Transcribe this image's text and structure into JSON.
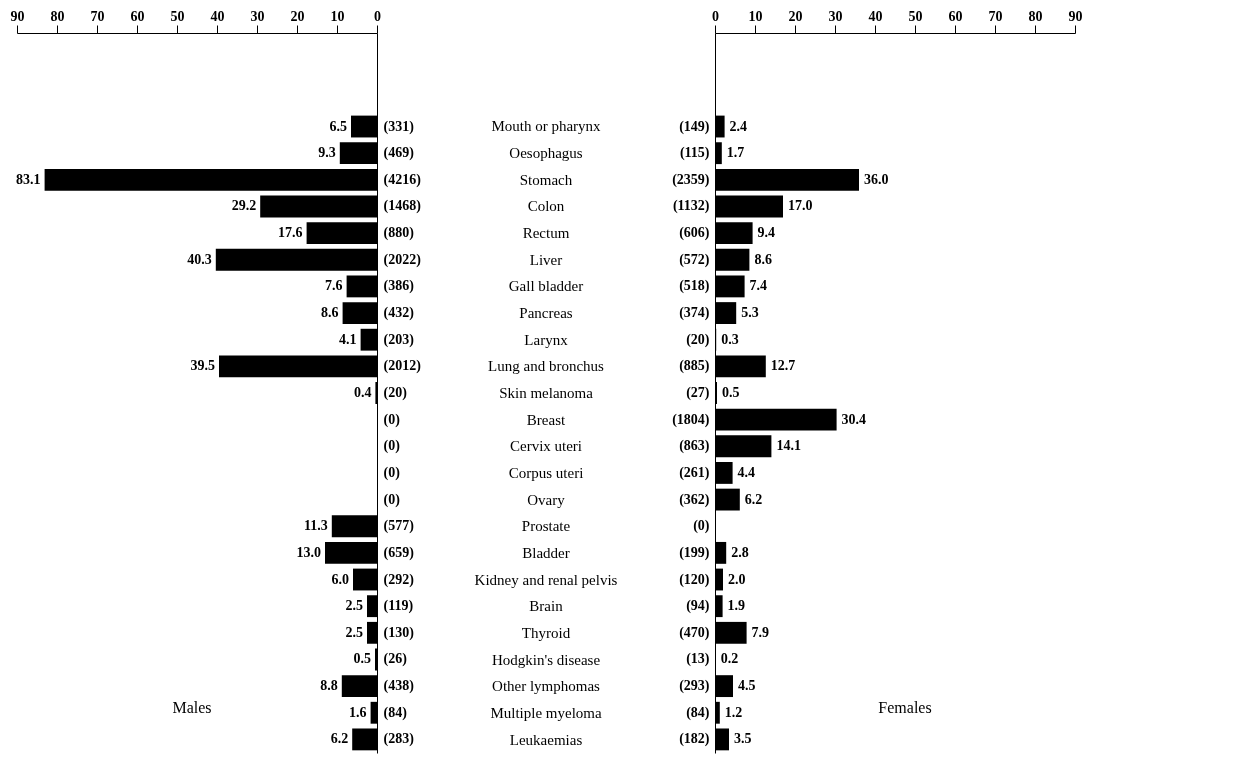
{
  "chart_data": [
    {
      "type": "bar",
      "orientation": "horizontal",
      "categories": [
        "(331)",
        "(469)",
        "(4216)",
        "(1468)",
        "(880)",
        "(2022)",
        "(386)",
        "(432)",
        "(203)",
        "(2012)",
        "(20)",
        "(0)",
        "(0)",
        "(0)",
        "(0)",
        "(577)",
        "(659)",
        "(292)",
        "(119)",
        "(130)",
        "(26)",
        "(438)",
        "(84)",
        "(283)"
      ],
      "values": [
        6.5,
        9.3,
        83.1,
        29.2,
        17.6,
        40.3,
        7.6,
        8.6,
        4.1,
        39.5,
        0.4,
        null,
        null,
        null,
        null,
        11.3,
        13.0,
        6.0,
        2.5,
        2.5,
        0.5,
        8.8,
        1.6,
        6.2
      ],
      "value_labels": [
        "6.5",
        "9.3",
        "83.1",
        "29.2",
        "17.6",
        "40.3",
        "7.6",
        "8.6",
        "4.1",
        "39.5",
        "0.4",
        null,
        null,
        null,
        null,
        "11.3",
        "13.0",
        "6.0",
        "2.5",
        "2.5",
        "0.5",
        "8.8",
        "1.6",
        "6.2"
      ],
      "color": "#000000",
      "x2lim": [
        90,
        0
      ],
      "x2ticks": [
        90,
        80,
        70,
        60,
        50,
        40,
        30,
        20,
        10,
        0
      ],
      "grid": false,
      "annotations": [
        "Males"
      ]
    },
    {
      "type": "other",
      "annotations": [
        "Mouth or pharynx",
        "Oesophagus",
        "Stomach",
        "Colon",
        "Rectum",
        "Liver",
        "Gall bladder",
        "Pancreas",
        "Larynx",
        "Lung and bronchus",
        "Skin melanoma",
        "Breast",
        "Cervix uteri",
        "Corpus uteri",
        "Ovary",
        "Prostate",
        "Bladder",
        "Kidney and renal pelvis",
        "Brain",
        "Thyroid",
        "Hodgkin's disease",
        "Other lymphomas",
        "Multiple myeloma",
        "Leukaemias"
      ]
    },
    {
      "type": "bar",
      "orientation": "horizontal",
      "categories": [
        "(149)",
        "(115)",
        "(2359)",
        "(1132)",
        "(606)",
        "(572)",
        "(518)",
        "(374)",
        "(20)",
        "(885)",
        "(27)",
        "(1804)",
        "(863)",
        "(261)",
        "(362)",
        "(0)",
        "(199)",
        "(120)",
        "(94)",
        "(470)",
        "(13)",
        "(293)",
        "(84)",
        "(182)"
      ],
      "values": [
        2.4,
        1.7,
        36.0,
        17.0,
        9.4,
        8.6,
        7.4,
        5.3,
        0.3,
        12.7,
        0.5,
        30.4,
        14.1,
        4.4,
        6.2,
        null,
        2.8,
        2.0,
        1.9,
        7.9,
        0.2,
        4.5,
        1.2,
        3.5
      ],
      "value_labels": [
        "2.4",
        "1.7",
        "36.0",
        "17.0",
        "9.4",
        "8.6",
        "7.4",
        "5.3",
        "0.3",
        "12.7",
        "0.5",
        "30.4",
        "14.1",
        "4.4",
        "6.2",
        null,
        "2.8",
        "2.0",
        "1.9",
        "7.9",
        "0.2",
        "4.5",
        "1.2",
        "3.5"
      ],
      "color": "#000000",
      "x2lim": [
        0,
        90
      ],
      "x2ticks": [
        0,
        10,
        20,
        30,
        40,
        50,
        60,
        70,
        80,
        90
      ],
      "grid": false,
      "annotations": [
        "Females"
      ]
    }
  ]
}
